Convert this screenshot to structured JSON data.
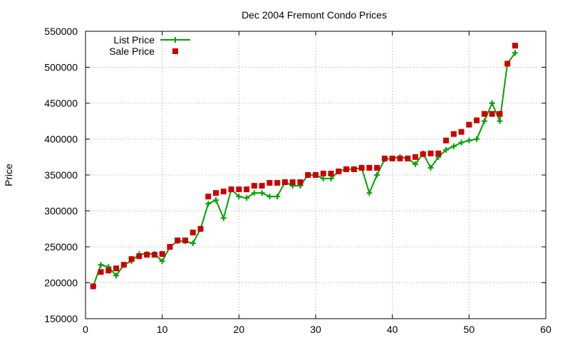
{
  "chart_data": {
    "type": "line",
    "title": "Dec 2004 Fremont Condo Prices",
    "xlabel": "",
    "ylabel": "Price",
    "xlim": [
      0,
      60
    ],
    "ylim": [
      150000,
      550000
    ],
    "x_ticks": [
      0,
      10,
      20,
      30,
      40,
      50,
      60
    ],
    "y_ticks": [
      150000,
      200000,
      250000,
      300000,
      350000,
      400000,
      450000,
      500000,
      550000
    ],
    "grid": true,
    "legend_position": "top-left",
    "series": [
      {
        "name": "List Price",
        "style": "line-cross",
        "color": "#00a000",
        "x": [
          1,
          2,
          3,
          4,
          5,
          6,
          7,
          8,
          9,
          10,
          11,
          12,
          13,
          14,
          15,
          16,
          17,
          18,
          19,
          20,
          21,
          22,
          23,
          24,
          25,
          26,
          27,
          28,
          29,
          30,
          31,
          32,
          33,
          34,
          35,
          36,
          37,
          38,
          39,
          40,
          41,
          42,
          43,
          44,
          45,
          46,
          47,
          48,
          49,
          50,
          51,
          52,
          53,
          54,
          55,
          56
        ],
        "values": [
          195000,
          225000,
          222000,
          210000,
          225000,
          230000,
          240000,
          240000,
          240000,
          230000,
          250000,
          258000,
          258000,
          255000,
          275000,
          310000,
          315000,
          290000,
          330000,
          320000,
          318000,
          325000,
          325000,
          320000,
          320000,
          340000,
          335000,
          335000,
          350000,
          350000,
          345000,
          345000,
          355000,
          358000,
          358000,
          360000,
          325000,
          350000,
          372000,
          373000,
          375000,
          373000,
          365000,
          380000,
          360000,
          375000,
          385000,
          390000,
          395000,
          398000,
          400000,
          425000,
          450000,
          425000,
          505000,
          520000
        ]
      },
      {
        "name": "Sale Price",
        "style": "square",
        "color": "#cc0000",
        "x": [
          1,
          2,
          3,
          4,
          5,
          6,
          7,
          8,
          9,
          10,
          11,
          12,
          13,
          14,
          15,
          16,
          17,
          18,
          19,
          20,
          21,
          22,
          23,
          24,
          25,
          26,
          27,
          28,
          29,
          30,
          31,
          32,
          33,
          34,
          35,
          36,
          37,
          38,
          39,
          40,
          41,
          42,
          43,
          44,
          45,
          46,
          47,
          48,
          49,
          50,
          51,
          52,
          53,
          54,
          55,
          56
        ],
        "values": [
          195000,
          215000,
          217000,
          220000,
          225000,
          233000,
          237000,
          239000,
          239000,
          240000,
          250000,
          259000,
          259000,
          270000,
          275000,
          320000,
          325000,
          327000,
          330000,
          330000,
          330000,
          335000,
          335000,
          339000,
          339000,
          340000,
          340000,
          340000,
          350000,
          350000,
          352000,
          352000,
          355000,
          358000,
          358000,
          360000,
          360000,
          360000,
          373000,
          373000,
          373000,
          373000,
          375000,
          379000,
          380000,
          380000,
          398000,
          407000,
          410000,
          420000,
          426000,
          435000,
          435000,
          435000,
          505000,
          530000
        ]
      }
    ]
  }
}
